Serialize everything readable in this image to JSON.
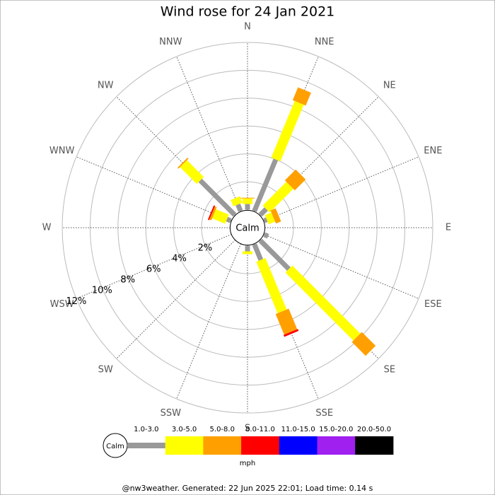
{
  "chart_data": {
    "type": "windrose",
    "title": "Wind rose for 24 Jan 2021",
    "categories": [
      "N",
      "NNE",
      "NE",
      "ENE",
      "E",
      "ESE",
      "SE",
      "SSE",
      "S",
      "SSW",
      "SW",
      "WSW",
      "W",
      "WNW",
      "NW",
      "NNW"
    ],
    "calm_label": "Calm",
    "series": [
      {
        "name": "1.0-3.0",
        "color": "#999999",
        "values": [
          0.4,
          4.0,
          0.6,
          0.2,
          0,
          0.3,
          2.9,
          1.2,
          0.4,
          0,
          0,
          0,
          0,
          0.3,
          3.5,
          0.5
        ]
      },
      {
        "name": "3.0-5.0",
        "color": "#ffff00",
        "values": [
          0.4,
          4.4,
          2.4,
          0.5,
          0,
          0,
          6.9,
          4.0,
          0.2,
          0,
          0,
          0,
          0,
          1.0,
          1.7,
          0.5
        ]
      },
      {
        "name": "5.0-8.0",
        "color": "#ffa000",
        "values": [
          0.05,
          1.0,
          1.1,
          0.4,
          0,
          0,
          1.4,
          1.6,
          0,
          0,
          0,
          0,
          0,
          0.15,
          0.1,
          0
        ]
      },
      {
        "name": "8.0-11.0",
        "color": "#ff0000",
        "values": [
          0,
          0,
          0,
          0,
          0,
          0,
          0,
          0.15,
          0,
          0,
          0,
          0,
          0,
          0.1,
          0,
          0
        ]
      },
      {
        "name": "11.0-15.0",
        "color": "#0000ff",
        "values": [
          0,
          0,
          0,
          0,
          0,
          0,
          0,
          0,
          0,
          0,
          0,
          0,
          0,
          0,
          0,
          0
        ]
      },
      {
        "name": "15.0-20.0",
        "color": "#a020f0",
        "values": [
          0,
          0,
          0,
          0,
          0,
          0,
          0,
          0,
          0,
          0,
          0,
          0,
          0,
          0,
          0,
          0
        ]
      },
      {
        "name": "20.0-50.0",
        "color": "#000000",
        "values": [
          0,
          0,
          0,
          0,
          0,
          0,
          0,
          0,
          0,
          0,
          0,
          0,
          0,
          0,
          0,
          0
        ]
      }
    ],
    "rlim": [
      0,
      12
    ],
    "rticks": [
      {
        "value": 2,
        "label": "2%"
      },
      {
        "value": 4,
        "label": "4%"
      },
      {
        "value": 6,
        "label": "6%"
      },
      {
        "value": 8,
        "label": "8%"
      },
      {
        "value": 10,
        "label": "10%"
      },
      {
        "value": 12,
        "label": "12%"
      }
    ],
    "legend_title": "mph",
    "footer": "@nw3weather. Generated: 22 Jun 2025 22:01; Load time: 0.14 s"
  }
}
